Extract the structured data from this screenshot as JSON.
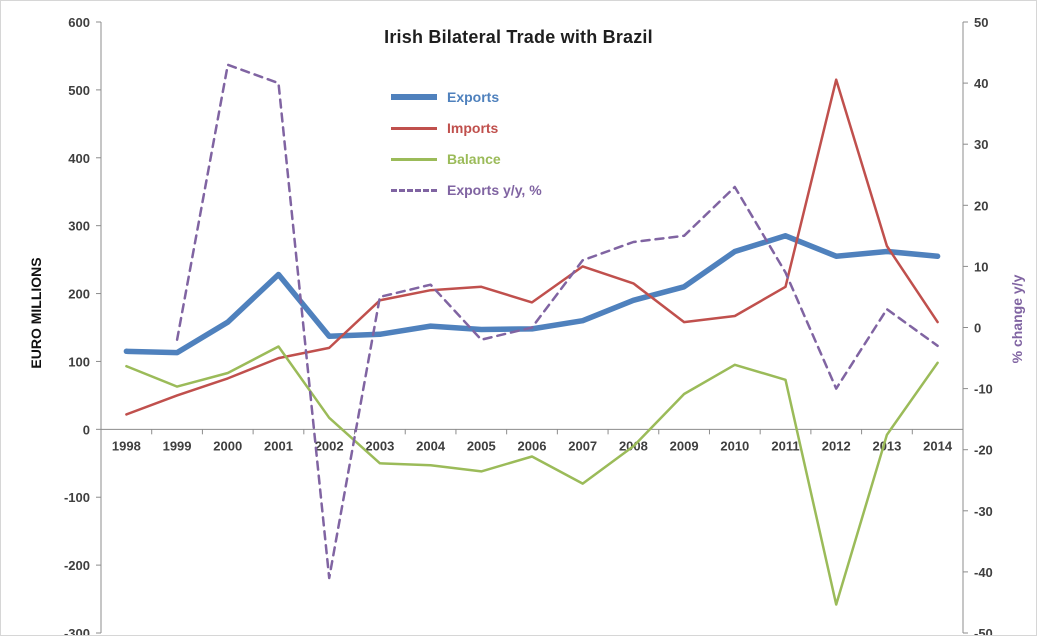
{
  "title": "Irish Bilateral Trade with Brazil",
  "left_axis_title": "EURO MILLIONS",
  "right_axis_title": "% change y/y",
  "colors": {
    "exports": "#4F81BD",
    "imports": "#C0504D",
    "balance": "#9BBB59",
    "exports_yoy": "#8064A2",
    "axis_line": "#8c8c8c",
    "tick_text": "#3f3f3f"
  },
  "legend": [
    {
      "label": "Exports",
      "color": "#4F81BD",
      "style": "solid-thick"
    },
    {
      "label": "Imports",
      "color": "#C0504D",
      "style": "solid"
    },
    {
      "label": "Balance",
      "color": "#9BBB59",
      "style": "solid"
    },
    {
      "label": "Exports y/y, %",
      "color": "#8064A2",
      "style": "dashed"
    }
  ],
  "chart_data": {
    "type": "line",
    "title": "Irish Bilateral Trade with Brazil",
    "categories": [
      1998,
      1999,
      2000,
      2001,
      2002,
      2003,
      2004,
      2005,
      2006,
      2007,
      2008,
      2009,
      2010,
      2011,
      2012,
      2013,
      2014
    ],
    "left_axis": {
      "label": "EURO MILLIONS",
      "min": -300,
      "max": 600,
      "tick_step": 100,
      "ticks": [
        600,
        500,
        400,
        300,
        200,
        100,
        0,
        -100,
        -200,
        -300
      ]
    },
    "right_axis": {
      "label": "% change y/y",
      "min": -50,
      "max": 50,
      "tick_step": 10,
      "ticks": [
        50,
        40,
        30,
        20,
        10,
        0,
        -10,
        -20,
        -30,
        -40,
        -50
      ]
    },
    "grid": false,
    "legend_position": "inside-top-center",
    "series": [
      {
        "name": "Exports",
        "axis": "left",
        "color": "#4F81BD",
        "width": 5.5,
        "dashed": false,
        "values": [
          115,
          113,
          158,
          228,
          137,
          140,
          152,
          147,
          148,
          160,
          190,
          210,
          262,
          285,
          255,
          262,
          255
        ]
      },
      {
        "name": "Imports",
        "axis": "left",
        "color": "#C0504D",
        "width": 2.5,
        "dashed": false,
        "values": [
          22,
          50,
          75,
          105,
          120,
          190,
          205,
          210,
          187,
          240,
          215,
          158,
          167,
          210,
          515,
          270,
          158
        ]
      },
      {
        "name": "Balance",
        "axis": "left",
        "color": "#9BBB59",
        "width": 2.5,
        "dashed": false,
        "values": [
          93,
          63,
          83,
          122,
          17,
          -50,
          -53,
          -62,
          -40,
          -80,
          -25,
          52,
          95,
          73,
          -258,
          -8,
          98
        ]
      },
      {
        "name": "Exports y/y, %",
        "axis": "right",
        "color": "#8064A2",
        "width": 2.5,
        "dashed": true,
        "values": [
          null,
          -2,
          43,
          40,
          -41,
          5,
          7,
          -2,
          0,
          11,
          14,
          15,
          23,
          9,
          -10,
          3,
          -3
        ]
      }
    ]
  }
}
